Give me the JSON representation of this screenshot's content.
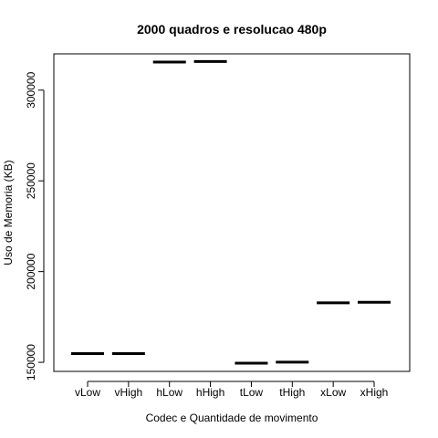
{
  "chart_data": {
    "type": "boxplot",
    "title": "2000 quadros e resolucao 480p",
    "xlabel": "Codec e Quantidade de movimento",
    "ylabel": "Uso de Memoria (KB)",
    "categories": [
      "vLow",
      "vHigh",
      "hLow",
      "hHigh",
      "tLow",
      "tHigh",
      "xLow",
      "xHigh"
    ],
    "values": [
      154800,
      154800,
      315500,
      315800,
      149500,
      150100,
      182800,
      183100
    ],
    "ylim": [
      145000,
      320000
    ],
    "yticks": [
      150000,
      200000,
      250000,
      300000
    ],
    "ytick_labels": [
      "150000",
      "200000",
      "250000",
      "300000"
    ],
    "grid": false,
    "line_color": "#000000"
  }
}
